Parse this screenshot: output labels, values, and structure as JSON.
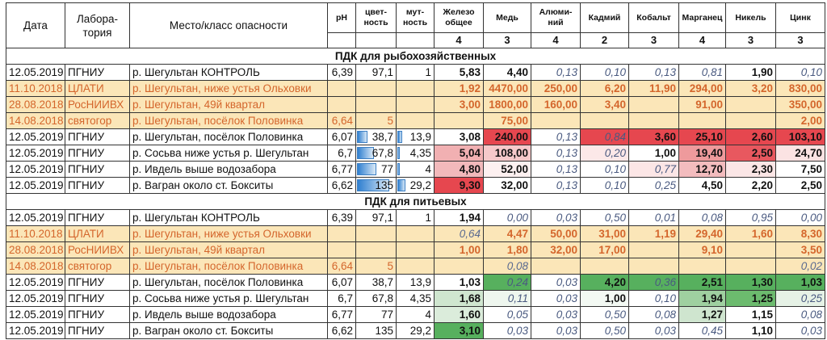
{
  "header": {
    "date": "Дата",
    "lab": "Лабора-\nтория",
    "place": "Место/класс опасности",
    "ph": "pH",
    "color": "цвет-\nность",
    "turbidity": "мут-\nность",
    "metals": [
      {
        "name": "Железо\nобщее",
        "class": "4"
      },
      {
        "name": "Медь",
        "class": "3"
      },
      {
        "name": "Алюми-\nний",
        "class": "4"
      },
      {
        "name": "Кадмий",
        "class": "2"
      },
      {
        "name": "Кобальт",
        "class": "3"
      },
      {
        "name": "Марганец",
        "class": "4"
      },
      {
        "name": "Никель",
        "class": "3"
      },
      {
        "name": "Цинк",
        "class": "3"
      }
    ]
  },
  "colors": {
    "red": "#e6474f",
    "green": "#57b05e",
    "tan": "#fbe6b8",
    "orange_text": "#d4662c",
    "bar": "#2f7fd0"
  },
  "sections": [
    {
      "title": "ПДК для рыбохозяйственных",
      "rows": [
        {
          "date": "12.05.2019",
          "lab": "ПГНИУ",
          "place": "р. Шегультан КОНТРОЛЬ",
          "ph": "6,39",
          "color": "97,1",
          "turb": "1",
          "tan": false,
          "cells": [
            [
              "5,83",
              "b",
              ""
            ],
            [
              "4,40",
              "b",
              ""
            ],
            [
              "0,13",
              "i",
              ""
            ],
            [
              "0,10",
              "i",
              ""
            ],
            [
              "0,13",
              "i",
              ""
            ],
            [
              "0,81",
              "i",
              ""
            ],
            [
              "1,90",
              "b",
              ""
            ],
            [
              "0,10",
              "i",
              ""
            ]
          ]
        },
        {
          "date": "11.10.2018",
          "lab": "ЦЛАТИ",
          "place": "р. Шегультан, ниже устья Ольховки",
          "ph": "",
          "color": "",
          "turb": "",
          "tan": true,
          "cells": [
            [
              "1,92",
              "o",
              ""
            ],
            [
              "4470,00",
              "o",
              ""
            ],
            [
              "250,00",
              "o",
              ""
            ],
            [
              "6,20",
              "o",
              ""
            ],
            [
              "11,90",
              "o",
              ""
            ],
            [
              "294,00",
              "o",
              ""
            ],
            [
              "3,20",
              "o",
              ""
            ],
            [
              "830,00",
              "o",
              ""
            ]
          ]
        },
        {
          "date": "28.08.2018",
          "lab": "РосНИИВХ",
          "place": "р. Шегультан, 49й квартал",
          "ph": "",
          "color": "",
          "turb": "",
          "tan": true,
          "cells": [
            [
              "3,00",
              "o",
              ""
            ],
            [
              "1800,00",
              "o",
              ""
            ],
            [
              "160,00",
              "o",
              ""
            ],
            [
              "3,40",
              "o",
              ""
            ],
            [
              "",
              "o",
              ""
            ],
            [
              "91,00",
              "o",
              ""
            ],
            [
              "",
              "o",
              ""
            ],
            [
              "350,00",
              "o",
              ""
            ]
          ]
        },
        {
          "date": "14.08.2018",
          "lab": "святогор",
          "place": "р. Шегультан, посёлок Половинка",
          "ph": "6,64",
          "color": "5",
          "turb": "",
          "tan": true,
          "cells": [
            [
              "",
              "o",
              ""
            ],
            [
              "75,00",
              "o",
              ""
            ],
            [
              "",
              "o",
              ""
            ],
            [
              "",
              "o",
              ""
            ],
            [
              "",
              "o",
              ""
            ],
            [
              "",
              "o",
              ""
            ],
            [
              "",
              "o",
              ""
            ],
            [
              "2,00",
              "o",
              ""
            ]
          ]
        },
        {
          "date": "12.05.2019",
          "lab": "ПГНИУ",
          "place": "р. Шегультан, посёлок Половинка",
          "ph": "6,07",
          "color": "38,7",
          "turb": "13,9",
          "tan": false,
          "color_bar": 0.29,
          "turb_bar": 0.1,
          "cells": [
            [
              "3,08",
              "b",
              ""
            ],
            [
              "240,00",
              "b",
              "#e6474f"
            ],
            [
              "0,13",
              "i",
              ""
            ],
            [
              "0,84",
              "i",
              "#e6474f"
            ],
            [
              "3,60",
              "b",
              "#e6474f"
            ],
            [
              "25,10",
              "b",
              "#e6474f"
            ],
            [
              "2,60",
              "b",
              "#e6474f"
            ],
            [
              "103,10",
              "b",
              "#e6474f"
            ]
          ]
        },
        {
          "date": "12.05.2019",
          "lab": "ПГНИУ",
          "place": "р. Сосьва ниже устья р. Шегультан",
          "ph": "6,7",
          "color": "67,8",
          "turb": "4,35",
          "tan": false,
          "color_bar": 0.5,
          "turb_bar": 0.03,
          "cells": [
            [
              "5,04",
              "b",
              "#f1b0b2"
            ],
            [
              "108,00",
              "b",
              "#f6c9ca"
            ],
            [
              "0,13",
              "i",
              ""
            ],
            [
              "0,20",
              "i",
              "#fce8e8"
            ],
            [
              "1,00",
              "b",
              ""
            ],
            [
              "19,40",
              "b",
              "#ee9a9c"
            ],
            [
              "2,50",
              "b",
              "#e8585f"
            ],
            [
              "24,70",
              "b",
              "#fbe3e3"
            ]
          ]
        },
        {
          "date": "12.05.2019",
          "lab": "ПГНИУ",
          "place": "р. Ивдель выше водозабора",
          "ph": "6,77",
          "color": "77",
          "turb": "4",
          "tan": false,
          "color_bar": 0.57,
          "turb_bar": 0.03,
          "cells": [
            [
              "4,80",
              "b",
              "#f2b9bb"
            ],
            [
              "52,00",
              "b",
              "#fdf0f0"
            ],
            [
              "0,13",
              "i",
              ""
            ],
            [
              "0,10",
              "i",
              ""
            ],
            [
              "0,77",
              "i",
              "#fce6e6"
            ],
            [
              "12,70",
              "b",
              "#f3bcbe"
            ],
            [
              "2,30",
              "b",
              "#fbe6e6"
            ],
            [
              "7,50",
              "b",
              ""
            ]
          ]
        },
        {
          "date": "12.05.2019",
          "lab": "ПГНИУ",
          "place": "р. Вагран около ст. Бокситы",
          "ph": "6,62",
          "color": "135",
          "turb": "29,2",
          "tan": false,
          "color_bar": 1.0,
          "turb_bar": 0.21,
          "cells": [
            [
              "9,30",
              "b",
              "#e6474f"
            ],
            [
              "32,00",
              "b",
              ""
            ],
            [
              "0,13",
              "i",
              ""
            ],
            [
              "0,10",
              "i",
              ""
            ],
            [
              "0,25",
              "i",
              ""
            ],
            [
              "4,50",
              "b",
              ""
            ],
            [
              "2,20",
              "b",
              ""
            ],
            [
              "2,50",
              "b",
              ""
            ]
          ]
        }
      ]
    },
    {
      "title": "ПДК для питьевых",
      "rows": [
        {
          "date": "12.05.2019",
          "lab": "ПГНИУ",
          "place": "р. Шегультан КОНТРОЛЬ",
          "ph": "6,39",
          "color": "97,1",
          "turb": "1",
          "tan": false,
          "cells": [
            [
              "1,94",
              "b",
              ""
            ],
            [
              "0,00",
              "i",
              ""
            ],
            [
              "0,03",
              "i",
              ""
            ],
            [
              "0,50",
              "i",
              ""
            ],
            [
              "0,01",
              "i",
              ""
            ],
            [
              "0,08",
              "i",
              ""
            ],
            [
              "0,95",
              "i",
              ""
            ],
            [
              "0,00",
              "i",
              ""
            ]
          ]
        },
        {
          "date": "11.10.2018",
          "lab": "ЦЛАТИ",
          "place": "р. Шегультан, ниже устья Ольховки",
          "ph": "",
          "color": "",
          "turb": "",
          "tan": true,
          "cells": [
            [
              "0,64",
              "i",
              ""
            ],
            [
              "4,47",
              "o",
              ""
            ],
            [
              "50,00",
              "o",
              ""
            ],
            [
              "31,00",
              "o",
              ""
            ],
            [
              "1,19",
              "o",
              ""
            ],
            [
              "29,40",
              "o",
              ""
            ],
            [
              "1,60",
              "o",
              ""
            ],
            [
              "8,30",
              "o",
              ""
            ]
          ]
        },
        {
          "date": "28.08.2018",
          "lab": "РосНИИВХ",
          "place": "р. Шегультан, 49й квартал",
          "ph": "",
          "color": "",
          "turb": "",
          "tan": true,
          "cells": [
            [
              "1,00",
              "o",
              ""
            ],
            [
              "1,80",
              "o",
              ""
            ],
            [
              "32,00",
              "o",
              ""
            ],
            [
              "17,00",
              "o",
              ""
            ],
            [
              "",
              "o",
              ""
            ],
            [
              "9,10",
              "o",
              ""
            ],
            [
              "",
              "o",
              ""
            ],
            [
              "3,50",
              "o",
              ""
            ]
          ]
        },
        {
          "date": "14.08.2018",
          "lab": "святогор",
          "place": "р. Шегультан, посёлок Половинка",
          "ph": "6,64",
          "color": "5",
          "turb": "",
          "tan": true,
          "cells": [
            [
              "",
              "o",
              ""
            ],
            [
              "0,08",
              "i",
              ""
            ],
            [
              "",
              "o",
              ""
            ],
            [
              "",
              "o",
              ""
            ],
            [
              "",
              "o",
              ""
            ],
            [
              "",
              "o",
              ""
            ],
            [
              "",
              "o",
              ""
            ],
            [
              "0,02",
              "i",
              ""
            ]
          ]
        },
        {
          "date": "12.05.2019",
          "lab": "ПГНИУ",
          "place": "р. Шегультан, посёлок Половинка",
          "ph": "6,07",
          "color": "38,7",
          "turb": "13,9",
          "tan": false,
          "cells": [
            [
              "1,03",
              "b",
              ""
            ],
            [
              "0,24",
              "i",
              "#57b05e"
            ],
            [
              "0,03",
              "i",
              ""
            ],
            [
              "4,20",
              "b",
              "#57b05e"
            ],
            [
              "0,36",
              "i",
              "#57b05e"
            ],
            [
              "2,51",
              "b",
              "#57b05e"
            ],
            [
              "1,30",
              "b",
              "#57b05e"
            ],
            [
              "1,03",
              "b",
              "#57b05e"
            ]
          ]
        },
        {
          "date": "12.05.2019",
          "lab": "ПГНИУ",
          "place": "р. Сосьва ниже устья р. Шегультан",
          "ph": "6,7",
          "color": "67,8",
          "turb": "4,35",
          "tan": false,
          "cells": [
            [
              "1,68",
              "b",
              "#cfe6cf"
            ],
            [
              "0,11",
              "i",
              "#eef6ee"
            ],
            [
              "0,03",
              "i",
              ""
            ],
            [
              "1,00",
              "b",
              "#f3f9f3"
            ],
            [
              "0,10",
              "i",
              ""
            ],
            [
              "1,94",
              "b",
              "#9fd0a0"
            ],
            [
              "1,25",
              "b",
              "#6cbb6e"
            ],
            [
              "0,25",
              "i",
              "#e6f2e6"
            ]
          ]
        },
        {
          "date": "12.05.2019",
          "lab": "ПГНИУ",
          "place": "р. Ивдель выше водозабора",
          "ph": "6,77",
          "color": "77",
          "turb": "4",
          "tan": false,
          "cells": [
            [
              "1,60",
              "b",
              "#dbecdb"
            ],
            [
              "0,05",
              "i",
              ""
            ],
            [
              "0,03",
              "i",
              ""
            ],
            [
              "0,50",
              "i",
              ""
            ],
            [
              "0,08",
              "i",
              ""
            ],
            [
              "1,27",
              "b",
              "#cfe5cf"
            ],
            [
              "1,15",
              "b",
              ""
            ],
            [
              "0,08",
              "i",
              ""
            ]
          ]
        },
        {
          "date": "12.05.2019",
          "lab": "ПГНИУ",
          "place": "р. Вагран около ст. Бокситы",
          "ph": "6,62",
          "color": "135",
          "turb": "29,2",
          "tan": false,
          "cells": [
            [
              "3,10",
              "b",
              "#57b05e"
            ],
            [
              "0,03",
              "i",
              ""
            ],
            [
              "0,03",
              "i",
              ""
            ],
            [
              "0,50",
              "i",
              ""
            ],
            [
              "0,03",
              "i",
              ""
            ],
            [
              "0,45",
              "i",
              ""
            ],
            [
              "1,10",
              "b",
              ""
            ],
            [
              "0,03",
              "i",
              ""
            ]
          ]
        }
      ]
    }
  ]
}
